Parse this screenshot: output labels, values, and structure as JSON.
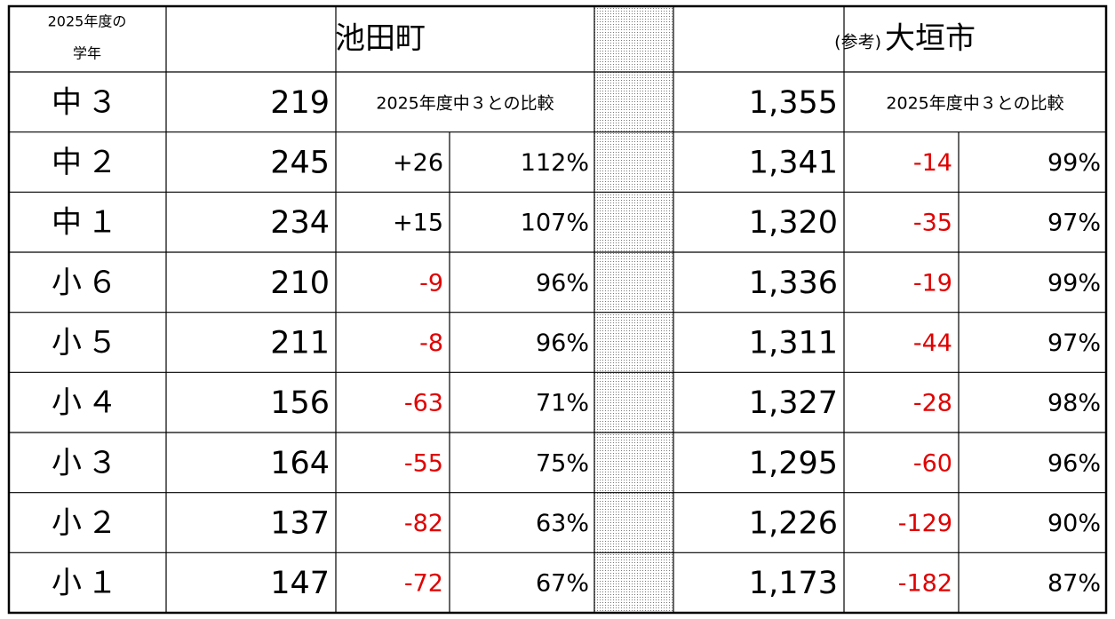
{
  "header": {
    "grade_label": [
      "2025年度の",
      "学年"
    ],
    "town": "池田町",
    "city_note": "(参考)",
    "city": "大垣市"
  },
  "first_row": {
    "grade": "中３",
    "town_count": "219",
    "town_compare": "2025年度中３との比較",
    "city_count": "1,355",
    "city_compare": "2025年度中３との比較"
  },
  "rows": [
    [
      "中２",
      "245",
      "+26",
      "112%",
      "1,341",
      "-14",
      "99%"
    ],
    [
      "中１",
      "234",
      "+15",
      "107%",
      "1,320",
      "-35",
      "97%"
    ],
    [
      "小６",
      "210",
      "-9",
      "96%",
      "1,336",
      "-19",
      "99%"
    ],
    [
      "小５",
      "211",
      "-8",
      "96%",
      "1,311",
      "-44",
      "97%"
    ],
    [
      "小４",
      "156",
      "-63",
      "71%",
      "1,327",
      "-28",
      "98%"
    ],
    [
      "小３",
      "164",
      "-55",
      "75%",
      "1,295",
      "-60",
      "96%"
    ],
    [
      "小２",
      "137",
      "-82",
      "63%",
      "1,226",
      "-129",
      "90%"
    ],
    [
      "小１",
      "147",
      "-72",
      "67%",
      "1,173",
      "-182",
      "87%"
    ]
  ]
}
